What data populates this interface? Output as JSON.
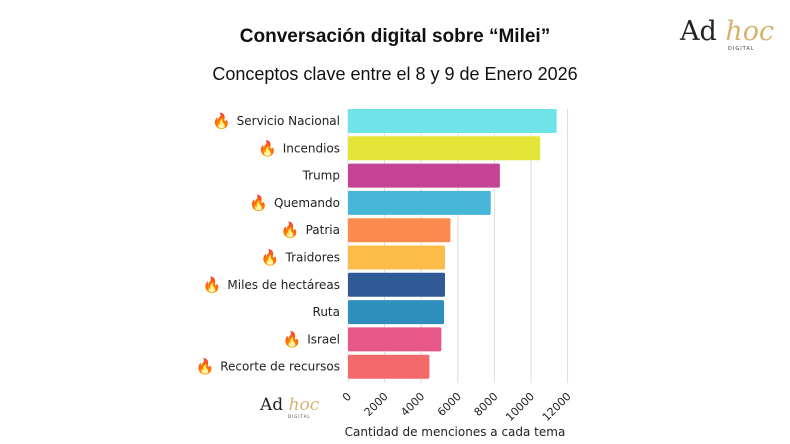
{
  "logo": {
    "main": "Ad",
    "accent": "hoc",
    "sub": "DIGITAL"
  },
  "chart_data": {
    "type": "bar",
    "orientation": "horizontal",
    "title": "Conversación digital sobre “Milei”",
    "subtitle": "Conceptos clave entre el 8 y 9 de Enero 2026",
    "xlabel": "Cantidad de menciones a cada tema",
    "ylabel": "",
    "xlim": [
      0,
      13000
    ],
    "xticks": [
      0,
      2000,
      4000,
      6000,
      8000,
      10000,
      12000
    ],
    "grid": true,
    "categories": [
      "Servicio Nacional",
      "Incendios",
      "Trump",
      "Quemando",
      "Patria",
      "Traidores",
      "Miles de hectáreas",
      "Ruta",
      "Israel",
      "Recorte de recursos"
    ],
    "values": [
      11400,
      10500,
      8300,
      7800,
      5600,
      5300,
      5300,
      5250,
      5100,
      4450
    ],
    "colors": [
      "#6ee3e8",
      "#e3e636",
      "#c44394",
      "#47b6d8",
      "#fb8a4e",
      "#fcbc48",
      "#2f5a97",
      "#2f90bf",
      "#e75787",
      "#f4696b"
    ],
    "fire_marked": [
      true,
      true,
      false,
      true,
      true,
      true,
      true,
      false,
      true,
      true
    ],
    "icon": "fire-icon",
    "icon_glyph": "🔥"
  }
}
